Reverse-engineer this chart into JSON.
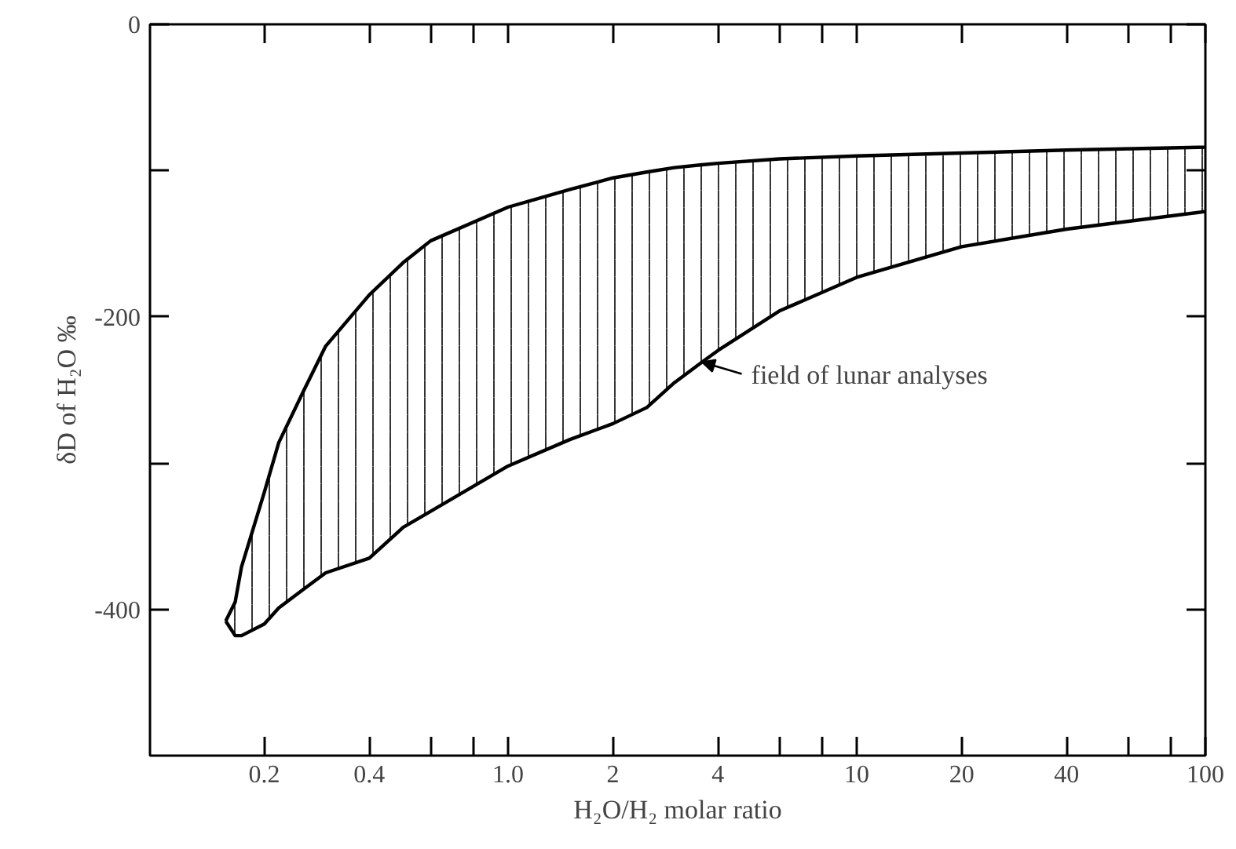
{
  "chart_data": {
    "type": "line",
    "xlabel": "H₂O/H₂ molar ratio",
    "ylabel": "δD of H₂O ‰",
    "log": "x",
    "grid": false,
    "xlim": [
      0.094,
      100
    ],
    "ylim": [
      -500,
      0
    ],
    "xticks": [
      {
        "value": 0.2,
        "label": "0.2"
      },
      {
        "value": 0.4,
        "label": "0.4"
      },
      {
        "value": 0.6,
        "label": null
      },
      {
        "value": 0.8,
        "label": null
      },
      {
        "value": 1,
        "label": "1.0"
      },
      2,
      4,
      {
        "value": 6,
        "label": null
      },
      {
        "value": 8,
        "label": null
      },
      10,
      20,
      40,
      {
        "value": 60,
        "label": null
      },
      {
        "value": 80,
        "label": null
      },
      100
    ],
    "yticks": [
      0,
      {
        "value": -100,
        "label": null
      },
      -200,
      {
        "value": -300,
        "label": null
      },
      -400
    ],
    "series": [
      {
        "color": "#000000",
        "x": [
          0.155,
          0.165,
          0.172,
          0.2,
          0.22,
          0.26,
          0.3,
          0.4,
          0.5,
          0.6,
          1,
          1.5,
          2,
          2.5,
          3,
          3.6,
          4,
          6,
          10,
          20,
          40,
          100
        ],
        "values": [
          -408,
          -395,
          -371,
          -320,
          -286,
          -250,
          -220,
          -185,
          -163,
          -148,
          -125,
          -113,
          -105,
          -101,
          -98,
          -96,
          -95,
          -92,
          -90,
          -88,
          -86,
          -84
        ],
        "upper": [
          -408,
          -395,
          -371,
          -320,
          -286,
          -250,
          -220,
          -185,
          -163,
          -148,
          -125,
          -113,
          -105,
          -101,
          -98,
          -96,
          -95,
          -92,
          -90,
          -88,
          -86,
          -84
        ],
        "lower": [
          -408,
          -418,
          -418,
          -410,
          -399,
          -386,
          -375,
          -365,
          -344,
          -333,
          -302,
          -284,
          -273,
          -262,
          -245,
          -231,
          -223,
          -196,
          -173,
          -152,
          -140,
          -128
        ]
      },
      {
        "color": "#000000",
        "x": [
          0.155,
          0.165,
          0.172,
          0.2,
          0.22,
          0.26,
          0.3,
          0.4,
          0.5,
          0.6,
          1,
          1.5,
          2,
          2.5,
          3,
          3.6,
          4,
          6,
          10,
          20,
          40,
          100
        ],
        "values": [
          -408,
          -418,
          -418,
          -410,
          -399,
          -386,
          -375,
          -365,
          -344,
          -333,
          -302,
          -284,
          -273,
          -262,
          -245,
          -231,
          -223,
          -196,
          -173,
          -152,
          -140,
          -128
        ]
      }
    ],
    "annotations": [
      {
        "text": "field of lunar analyses",
        "x": 3.6,
        "y": -231
      }
    ]
  }
}
